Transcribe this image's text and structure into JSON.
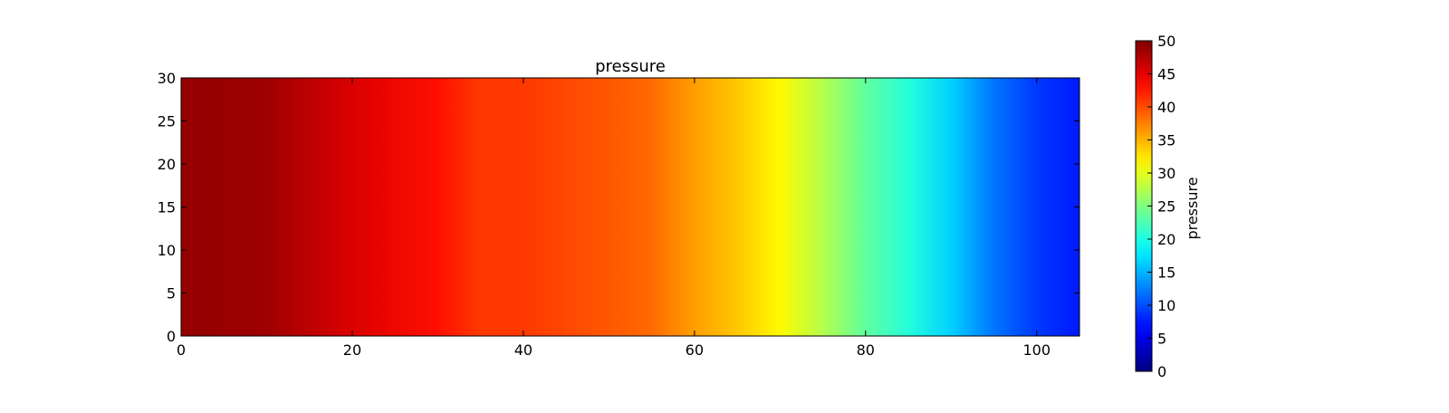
{
  "chart_data": {
    "type": "heatmap",
    "title": "pressure",
    "xlabel": "",
    "ylabel": "",
    "xlim": [
      0,
      105
    ],
    "ylim": [
      0,
      30
    ],
    "x_ticks": [
      "0",
      "20",
      "40",
      "60",
      "80",
      "100"
    ],
    "y_ticks": [
      "0",
      "5",
      "10",
      "15",
      "20",
      "25",
      "30"
    ],
    "colormap": "jet",
    "value_range": [
      0,
      50
    ],
    "field_profile": {
      "description_axis": "x",
      "x": [
        0,
        10,
        20,
        30,
        35,
        40,
        50,
        55,
        60,
        65,
        70,
        75,
        80,
        85,
        90,
        95,
        100,
        105
      ],
      "values": [
        49,
        48.5,
        45.5,
        43,
        41,
        41,
        39.5,
        38.5,
        36,
        34,
        31.5,
        27.5,
        23.5,
        20.5,
        16.5,
        12,
        9,
        7.5
      ]
    },
    "colorbar": {
      "label": "pressure",
      "ticks": [
        "0",
        "5",
        "10",
        "15",
        "20",
        "25",
        "30",
        "35",
        "40",
        "45",
        "50"
      ]
    }
  }
}
